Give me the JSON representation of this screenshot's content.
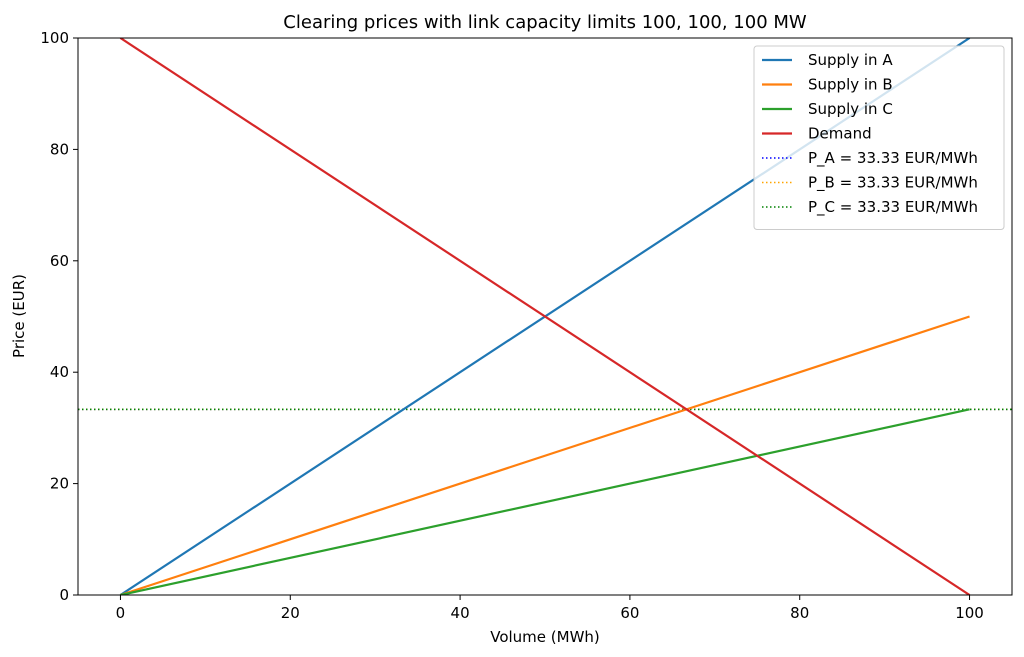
{
  "chart_data": {
    "type": "line",
    "title": "Clearing prices with link capacity limits 100, 100, 100 MW",
    "xlabel": "Volume (MWh)",
    "ylabel": "Price (EUR)",
    "xlim": [
      -5,
      105
    ],
    "ylim": [
      0,
      100
    ],
    "xticks": [
      0,
      20,
      40,
      60,
      80,
      100
    ],
    "yticks": [
      0,
      20,
      40,
      60,
      80,
      100
    ],
    "xtick_labels": [
      "0",
      "20",
      "40",
      "60",
      "80",
      "100"
    ],
    "ytick_labels": [
      "0",
      "20",
      "40",
      "60",
      "80",
      "100"
    ],
    "grid": false,
    "legend_position": "top-right",
    "series": [
      {
        "name": "Supply in A",
        "color": "#1f77b4",
        "style": "solid",
        "x": [
          0,
          100
        ],
        "y": [
          0,
          100
        ]
      },
      {
        "name": "Supply in B",
        "color": "#ff7f0e",
        "style": "solid",
        "x": [
          0,
          100
        ],
        "y": [
          0,
          50
        ]
      },
      {
        "name": "Supply in C",
        "color": "#2ca02c",
        "style": "solid",
        "x": [
          0,
          100
        ],
        "y": [
          0,
          33.33
        ]
      },
      {
        "name": "Demand",
        "color": "#d62728",
        "style": "solid",
        "x": [
          0,
          100
        ],
        "y": [
          100,
          0
        ]
      }
    ],
    "hlines": [
      {
        "name": "P_A = 33.33 EUR/MWh",
        "color": "#0000ff",
        "style": "dotted",
        "y": 33.33
      },
      {
        "name": "P_B = 33.33 EUR/MWh",
        "color": "#ffa500",
        "style": "dotted",
        "y": 33.33
      },
      {
        "name": "P_C = 33.33 EUR/MWh",
        "color": "#008000",
        "style": "dotted",
        "y": 33.33
      }
    ]
  }
}
